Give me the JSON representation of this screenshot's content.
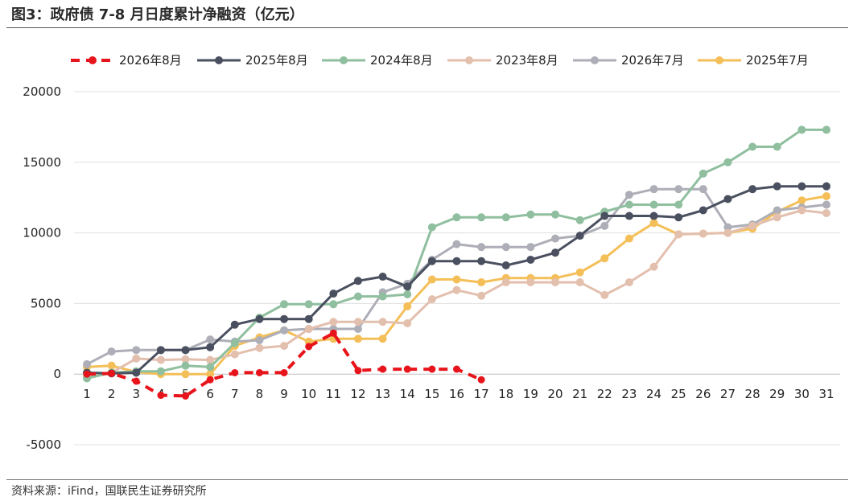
{
  "title": "图3：政府债 7-8 月日度累计净融资（亿元）",
  "source": "资料来源：iFind，国联民生证券研究所",
  "chart_data": {
    "type": "line",
    "title": "图3：政府债 7-8 月日度累计净融资（亿元）",
    "xlabel": "",
    "ylabel": "",
    "ylim": [
      -5000,
      20000
    ],
    "y_ticks": [
      "20000",
      "15000",
      "10000",
      "5000",
      "0",
      "-5000"
    ],
    "y_tick_values": [
      20000,
      15000,
      10000,
      5000,
      0,
      -5000
    ],
    "x": [
      "1",
      "2",
      "3",
      "4",
      "5",
      "6",
      "7",
      "8",
      "9",
      "10",
      "11",
      "12",
      "13",
      "14",
      "15",
      "16",
      "17",
      "18",
      "19",
      "20",
      "21",
      "22",
      "23",
      "24",
      "25",
      "26",
      "27",
      "28",
      "29",
      "30",
      "31"
    ],
    "grid": "horizontal",
    "legend_position": "top",
    "series": [
      {
        "name": "2026年8月",
        "color": "#e8141b",
        "dashed": true,
        "values": [
          0,
          50,
          -500,
          -1500,
          -1550,
          -400,
          100,
          100,
          100,
          1950,
          2900,
          250,
          350,
          350,
          350,
          350,
          -400,
          null,
          null,
          null,
          null,
          null,
          null,
          null,
          null,
          null,
          null,
          null,
          null,
          null,
          null
        ]
      },
      {
        "name": "2025年8月",
        "color": "#4a5060",
        "dashed": false,
        "values": [
          100,
          50,
          100,
          1700,
          1700,
          1900,
          3500,
          3900,
          3900,
          3900,
          5700,
          6600,
          6900,
          6200,
          8000,
          8000,
          8000,
          7700,
          8100,
          8600,
          9800,
          11200,
          11200,
          11200,
          11100,
          11600,
          12400,
          13100,
          13300,
          13300,
          13300
        ]
      },
      {
        "name": "2024年8月",
        "color": "#8fbf9f",
        "dashed": false,
        "values": [
          -300,
          100,
          200,
          200,
          600,
          500,
          2200,
          4000,
          4950,
          4950,
          4950,
          5500,
          5500,
          5650,
          10400,
          11100,
          11100,
          11100,
          11300,
          11300,
          10900,
          11500,
          12000,
          12000,
          12000,
          14200,
          15000,
          16100,
          16100,
          17300,
          17300
        ]
      },
      {
        "name": "2023年8月",
        "color": "#e3bfae",
        "dashed": false,
        "values": [
          -150,
          100,
          1100,
          1000,
          1050,
          1000,
          1400,
          1850,
          2000,
          3200,
          3700,
          3700,
          3700,
          3600,
          5300,
          5950,
          5550,
          6500,
          6500,
          6500,
          6500,
          5600,
          6500,
          7600,
          9900,
          9950,
          10000,
          10500,
          11100,
          11600,
          11400
        ]
      },
      {
        "name": "2026年7月",
        "color": "#adaeb7",
        "dashed": false,
        "values": [
          700,
          1600,
          1700,
          1700,
          1700,
          2450,
          2300,
          2400,
          3100,
          3200,
          3200,
          3200,
          5800,
          6400,
          8100,
          9200,
          9000,
          9000,
          9000,
          9600,
          9800,
          10500,
          12700,
          13100,
          13100,
          13100,
          10400,
          10600,
          11600,
          11800,
          12000
        ]
      },
      {
        "name": "2025年7月",
        "color": "#f4bf58",
        "dashed": false,
        "values": [
          500,
          600,
          150,
          0,
          0,
          0,
          2000,
          2600,
          3100,
          2300,
          2500,
          2500,
          2500,
          4800,
          6700,
          6700,
          6500,
          6800,
          6800,
          6800,
          7200,
          8200,
          9600,
          10700,
          9900,
          9950,
          10000,
          10300,
          11500,
          12300,
          12600
        ]
      }
    ]
  }
}
